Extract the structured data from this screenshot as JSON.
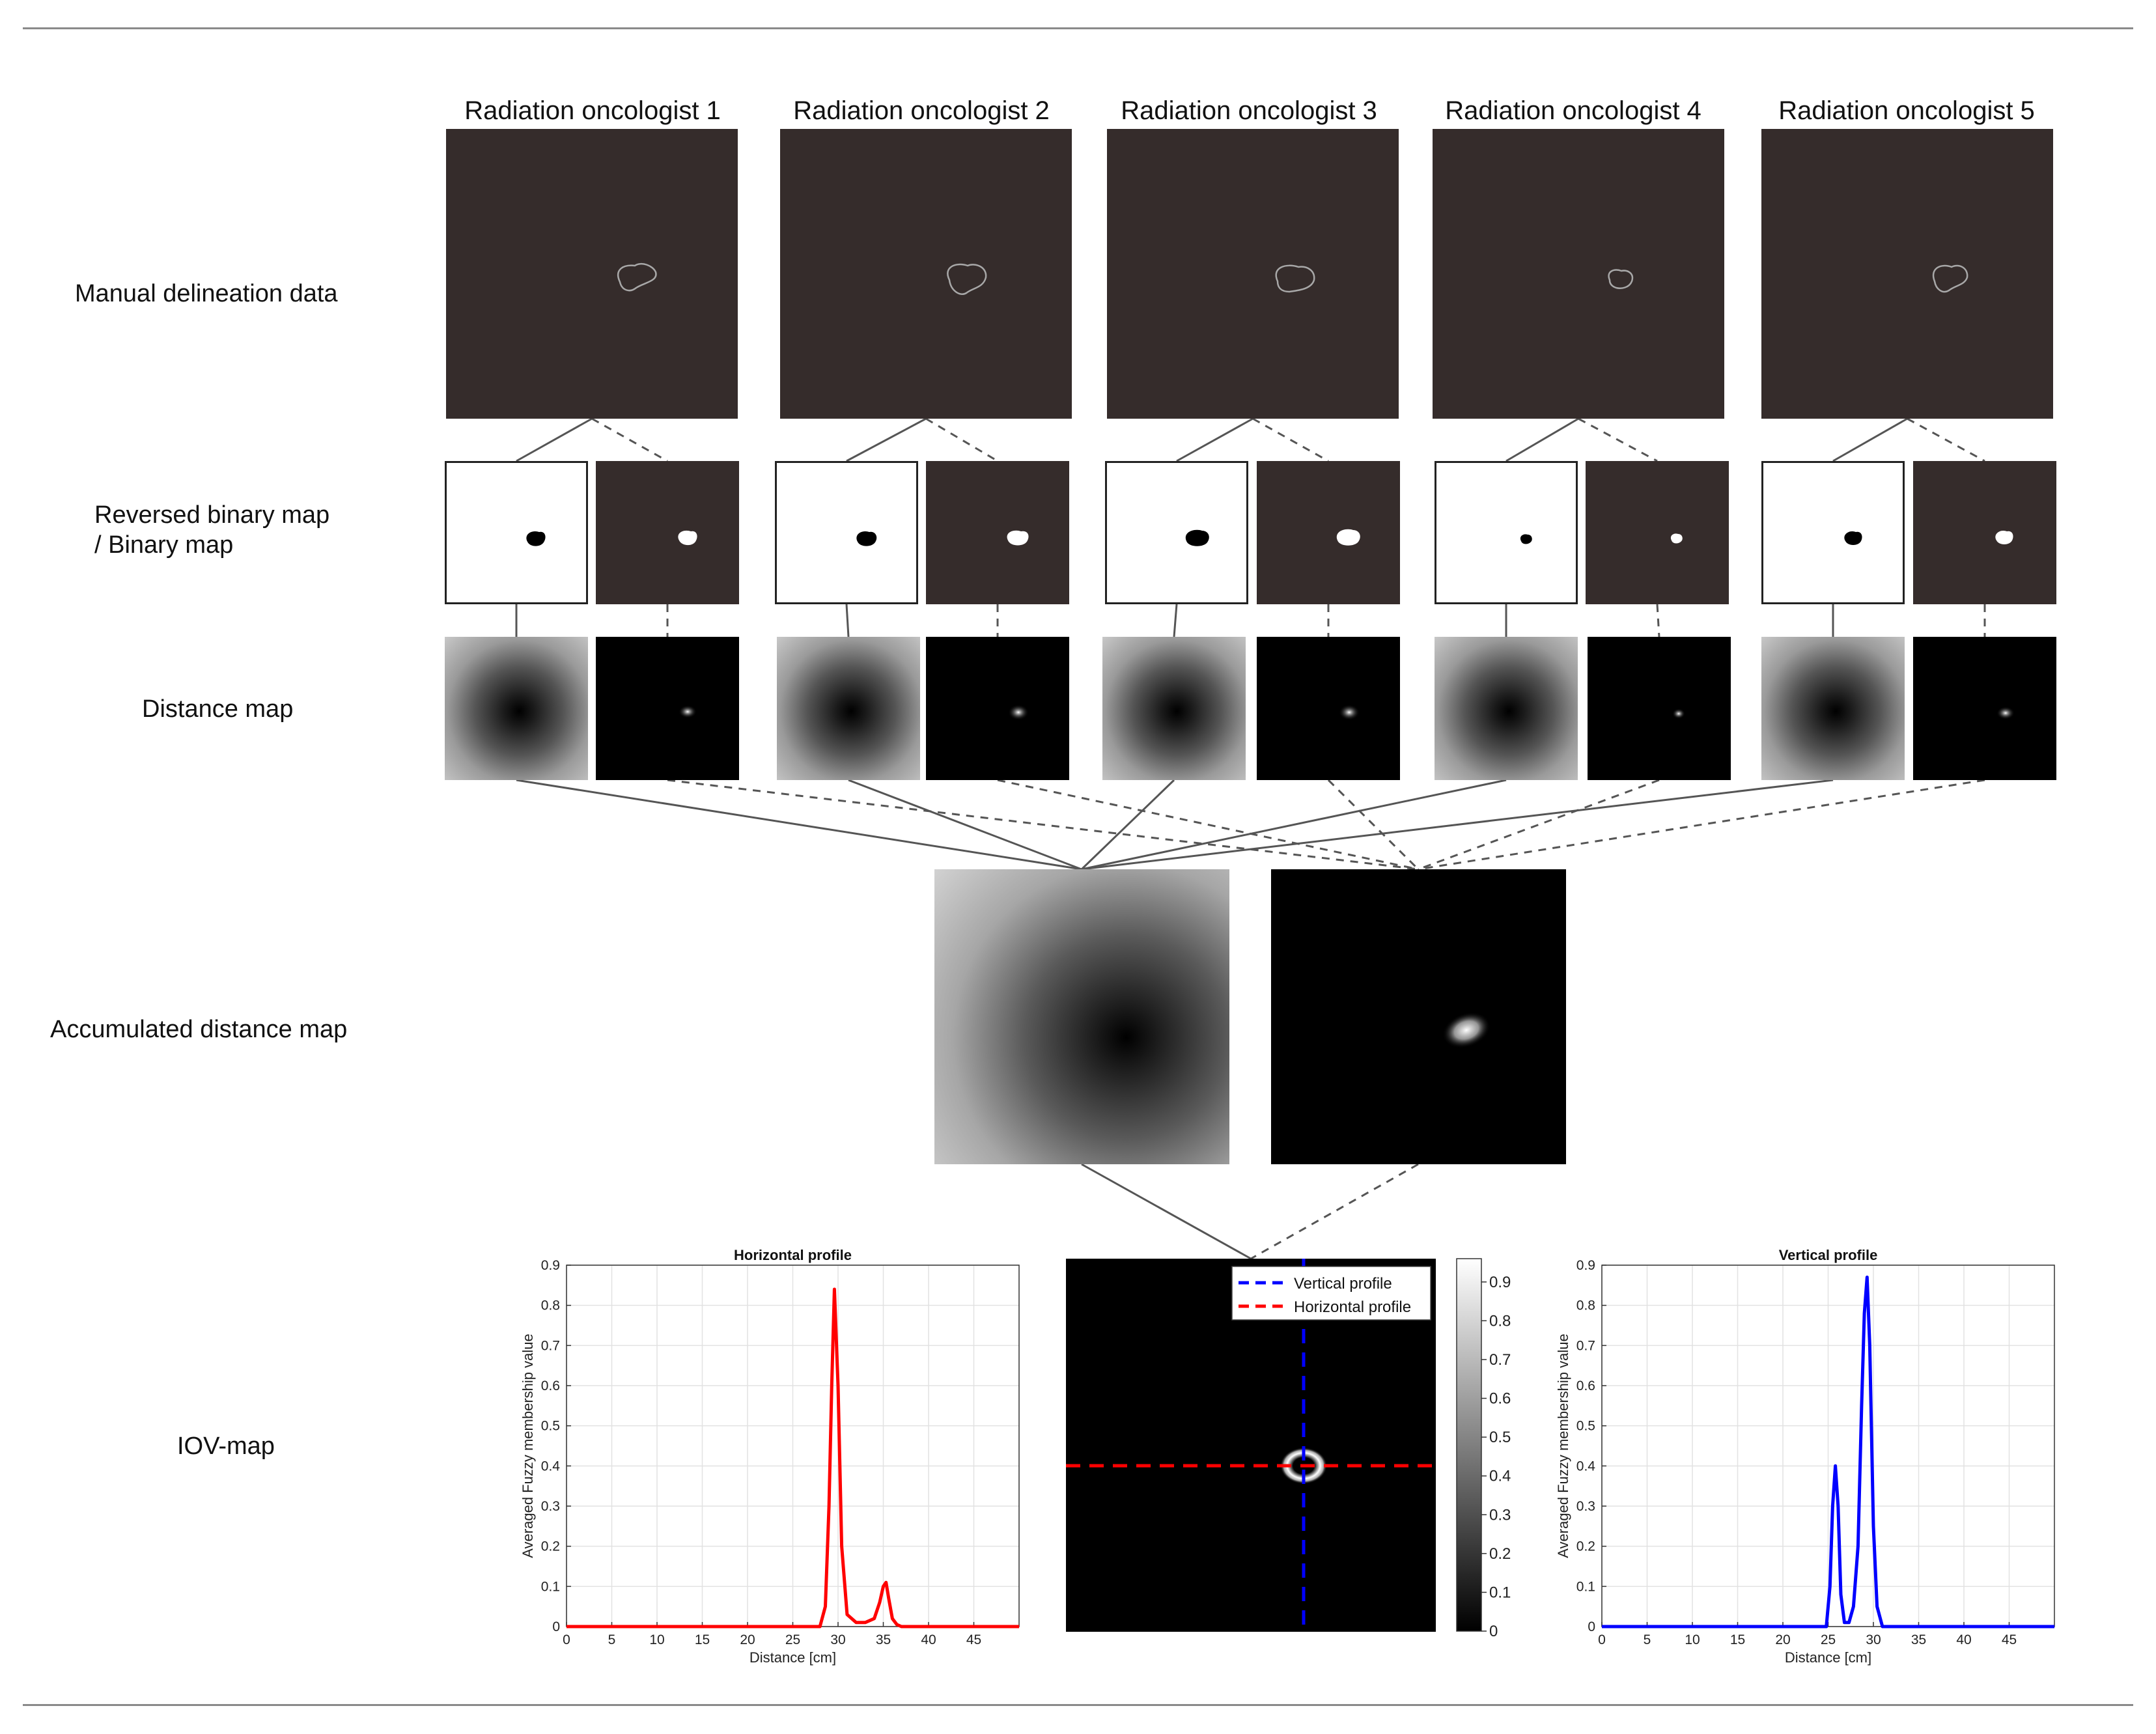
{
  "columns": [
    {
      "title": "Radiation oncologist 1"
    },
    {
      "title": "Radiation oncologist 2"
    },
    {
      "title": "Radiation oncologist 3"
    },
    {
      "title": "Radiation oncologist 4"
    },
    {
      "title": "Radiation oncologist 5"
    }
  ],
  "row_labels": {
    "manual": "Manual delineation data",
    "binary_line1": "Reversed binary map",
    "binary_line2": "/ Binary map",
    "distance": "Distance map",
    "accumulated": "Accumulated distance map",
    "iov": "IOV-map"
  },
  "colors": {
    "dark_panel": "#352c2b",
    "horizontal_line": "#ff0000",
    "vertical_line": "#0000ff",
    "connector": "#555555"
  },
  "chart_data": [
    {
      "type": "line",
      "title": "Horizontal profile",
      "xlabel": "Distance [cm]",
      "ylabel": "Averaged Fuzzy membership value",
      "xlim": [
        0,
        50
      ],
      "ylim": [
        0,
        0.9
      ],
      "xticks": [
        0,
        5,
        10,
        15,
        20,
        25,
        30,
        35,
        40,
        45
      ],
      "yticks": [
        0,
        0.1,
        0.2,
        0.3,
        0.4,
        0.5,
        0.6,
        0.7,
        0.8,
        0.9
      ],
      "grid": true,
      "series": [
        {
          "color": "#ff0000",
          "x": [
            0,
            28.0,
            28.6,
            29.0,
            29.3,
            29.6,
            30.0,
            30.4,
            31.0,
            32.0,
            33.0,
            34.0,
            34.6,
            35.0,
            35.3,
            35.6,
            36.0,
            36.5,
            37.0,
            50
          ],
          "y": [
            0,
            0,
            0.05,
            0.3,
            0.6,
            0.84,
            0.6,
            0.2,
            0.03,
            0.01,
            0.01,
            0.02,
            0.06,
            0.1,
            0.11,
            0.07,
            0.02,
            0.005,
            0,
            0
          ]
        }
      ]
    },
    {
      "type": "heatmap",
      "colorbar_ticks": [
        0,
        0.1,
        0.2,
        0.3,
        0.4,
        0.5,
        0.6,
        0.7,
        0.8,
        0.9
      ],
      "legend": [
        {
          "label": "Vertical profile",
          "color": "#0000ff"
        },
        {
          "label": "Horizontal profile",
          "color": "#ff0000"
        }
      ],
      "legend_position": "top-right"
    },
    {
      "type": "line",
      "title": "Vertical profile",
      "xlabel": "Distance [cm]",
      "ylabel": "Averaged Fuzzy membership value",
      "xlim": [
        0,
        50
      ],
      "ylim": [
        0,
        0.9
      ],
      "xticks": [
        0,
        5,
        10,
        15,
        20,
        25,
        30,
        35,
        40,
        45
      ],
      "yticks": [
        0,
        0.1,
        0.2,
        0.3,
        0.4,
        0.5,
        0.6,
        0.7,
        0.8,
        0.9
      ],
      "grid": true,
      "series": [
        {
          "color": "#0000ff",
          "x": [
            0,
            24.8,
            25.2,
            25.5,
            25.8,
            26.1,
            26.4,
            26.8,
            27.3,
            27.8,
            28.3,
            28.7,
            29.0,
            29.3,
            29.6,
            30.0,
            30.4,
            31.0,
            50
          ],
          "y": [
            0,
            0,
            0.1,
            0.3,
            0.4,
            0.3,
            0.08,
            0.01,
            0.01,
            0.05,
            0.2,
            0.55,
            0.78,
            0.87,
            0.7,
            0.25,
            0.05,
            0,
            0
          ]
        }
      ]
    }
  ]
}
